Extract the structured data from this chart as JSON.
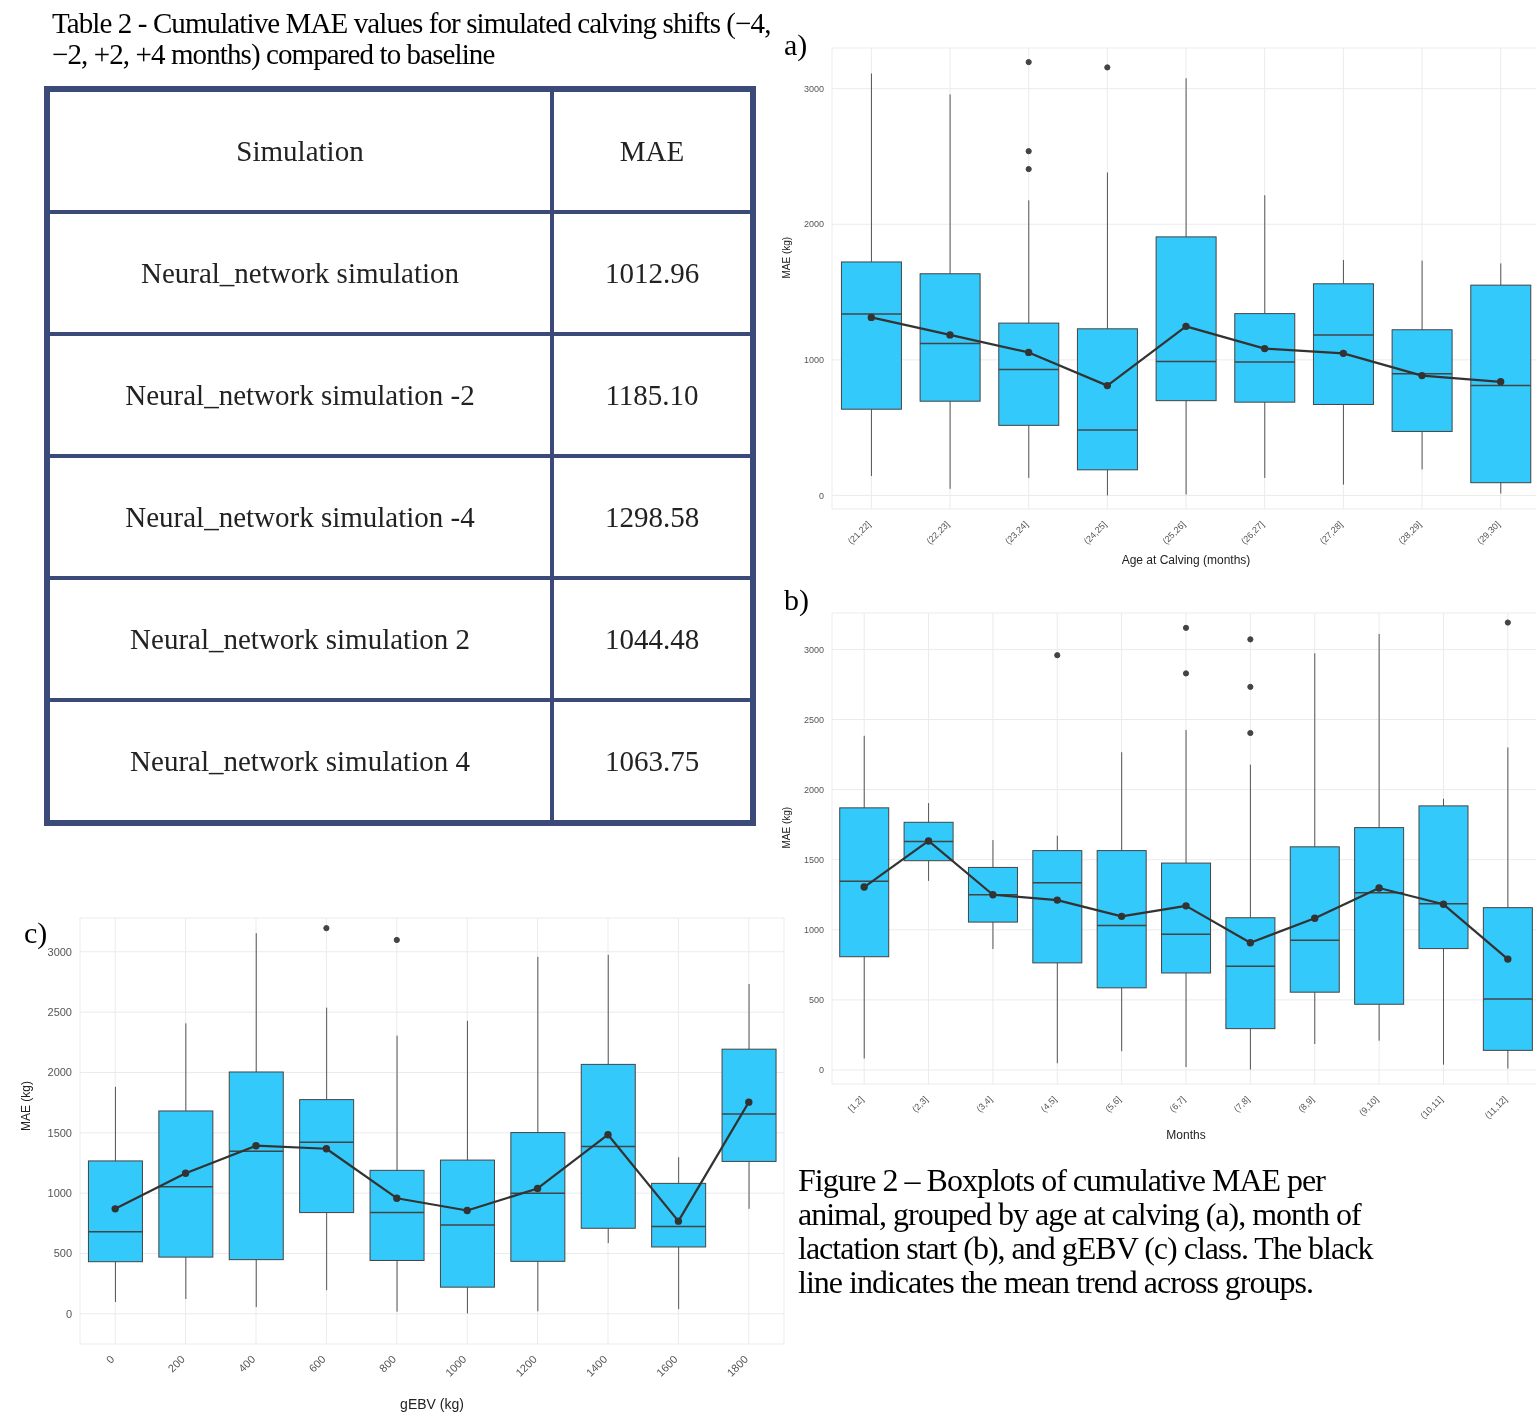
{
  "chart_data": [
    {
      "type": "other",
      "title": "Table 2 - Cumulative MAE values for simulated calving shifts (−4, −2, +2, +4 months) compared to baseline",
      "xlabel": "Simulation",
      "ylabel": "MAE",
      "categories": [
        "Neural_network simulation",
        "Neural_network simulation -2",
        "Neural_network simulation -4",
        "Neural_network simulation 2",
        "Neural_network simulation 4"
      ],
      "value_labels": [
        "1012.96",
        "1185.10",
        "1298.58",
        "1044.48",
        "1063.75"
      ]
    },
    {
      "type": "box",
      "title": "a)",
      "xlabel": "Age at Calving (months)",
      "ylabel": "MAE (kg)",
      "categories": [
        "(21,22]",
        "(22,23]",
        "(23,24]",
        "(24,25]",
        "(25,26]",
        "(26,27]",
        "(27,28]",
        "(28,29]",
        "(29,30]"
      ],
      "ylim": [
        -100,
        3300
      ],
      "yticks": [
        0,
        1000,
        2000,
        3000
      ],
      "grid": true,
      "marker": "circle",
      "series": [
        {
          "type": "box",
          "color": "#33c9fa",
          "boxes": [
            {
              "low": 143,
              "q1": 636,
              "median": 1338,
              "q3": 1722,
              "high": 3112
            },
            {
              "low": 49,
              "q1": 695,
              "median": 1121,
              "q3": 1635,
              "high": 2958
            },
            {
              "low": 129,
              "q1": 517,
              "median": 929,
              "q3": 1271,
              "high": 2176,
              "outliers": [
                3196,
                2539,
                2407
              ]
            },
            {
              "low": 0,
              "q1": 189,
              "median": 482,
              "q3": 1229,
              "high": 2382,
              "outliers": [
                3157
              ]
            },
            {
              "low": 7,
              "q1": 699,
              "median": 988,
              "q3": 1907,
              "high": 3077
            },
            {
              "low": 129,
              "q1": 688,
              "median": 985,
              "q3": 1341,
              "high": 2214
            },
            {
              "low": 80,
              "q1": 671,
              "median": 1184,
              "q3": 1561,
              "high": 1736
            },
            {
              "low": 192,
              "q1": 472,
              "median": 898,
              "q3": 1222,
              "high": 1732
            },
            {
              "low": 14,
              "q1": 94,
              "median": 810,
              "q3": 1551,
              "high": 1711
            }
          ]
        },
        {
          "type": "line",
          "color": "#333333",
          "values": [
            1313,
            1184,
            1055,
            810,
            1247,
            1083,
            1048,
            884,
            838
          ]
        }
      ]
    },
    {
      "type": "box",
      "title": "b)",
      "xlabel": "Months",
      "ylabel": "MAE (kg)",
      "categories": [
        "[1,2]",
        "(2,3]",
        "(3,4]",
        "(4,5]",
        "(5,6]",
        "(6,7]",
        "(7,8]",
        "(8,9]",
        "(9,10]",
        "(10,11]",
        "(11,12]"
      ],
      "ylim": [
        -100,
        3260
      ],
      "yticks": [
        0,
        500,
        1000,
        1500,
        2000,
        2500,
        3000
      ],
      "grid": true,
      "marker": "circle",
      "series": [
        {
          "type": "box",
          "color": "#33c9fa",
          "boxes": [
            {
              "low": 82,
              "q1": 808,
              "median": 1346,
              "q3": 1870,
              "high": 2384
            },
            {
              "low": 1349,
              "q1": 1493,
              "median": 1630,
              "q3": 1767,
              "high": 1904
            },
            {
              "low": 863,
              "q1": 1055,
              "median": 1250,
              "q3": 1445,
              "high": 1640
            },
            {
              "low": 48,
              "q1": 764,
              "median": 1336,
              "q3": 1565,
              "high": 1671,
              "outliers": [
                2959
              ]
            },
            {
              "low": 134,
              "q1": 586,
              "median": 1031,
              "q3": 1565,
              "high": 2267
            },
            {
              "low": 21,
              "q1": 692,
              "median": 969,
              "q3": 1476,
              "high": 2425,
              "outliers": [
                3154,
                2829
              ]
            },
            {
              "low": 3,
              "q1": 295,
              "median": 740,
              "q3": 1086,
              "high": 2178,
              "outliers": [
                3072,
                2733,
                2404
              ]
            },
            {
              "low": 185,
              "q1": 555,
              "median": 925,
              "q3": 1592,
              "high": 2973
            },
            {
              "low": 209,
              "q1": 469,
              "median": 1264,
              "q3": 1729,
              "high": 3110
            },
            {
              "low": 38,
              "q1": 866,
              "median": 1185,
              "q3": 1884,
              "high": 1935
            },
            {
              "low": 10,
              "q1": 140,
              "median": 507,
              "q3": 1158,
              "high": 2301,
              "outliers": [
                3192
              ]
            }
          ]
        },
        {
          "type": "line",
          "color": "#333333",
          "values": [
            1305,
            1634,
            1250,
            1212,
            1096,
            1171,
            908,
            1082,
            1298,
            1182,
            791
          ]
        }
      ]
    },
    {
      "type": "box",
      "title": "c)",
      "xlabel": "gEBV (kg)",
      "ylabel": "MAE (kg)",
      "categories": [
        "0",
        "200",
        "400",
        "600",
        "800",
        "1000",
        "1200",
        "1400",
        "1600",
        "1800"
      ],
      "ylim": [
        -250,
        3280
      ],
      "yticks": [
        0,
        500,
        1000,
        1500,
        2000,
        2500,
        3000
      ],
      "grid": true,
      "marker": "circle",
      "annotations": [
        "Figure 2 – Boxplots of cumulative MAE per animal, grouped by age at calving (a), month of lactation start (b), and gEBV (c) class. The black line indicates the mean trend across groups."
      ],
      "series": [
        {
          "type": "box",
          "color": "#33c9fa",
          "boxes": [
            {
              "low": 98,
              "q1": 432,
              "median": 681,
              "q3": 1267,
              "high": 1881
            },
            {
              "low": 123,
              "q1": 470,
              "median": 1053,
              "q3": 1681,
              "high": 2407
            },
            {
              "low": 56,
              "q1": 449,
              "median": 1347,
              "q3": 2004,
              "high": 3154
            },
            {
              "low": 196,
              "q1": 839,
              "median": 1421,
              "q3": 1775,
              "high": 2537,
              "outliers": [
                3196
              ]
            },
            {
              "low": 18,
              "q1": 442,
              "median": 839,
              "q3": 1189,
              "high": 2305,
              "outliers": [
                3098
              ]
            },
            {
              "low": 4,
              "q1": 221,
              "median": 737,
              "q3": 1274,
              "high": 2428
            },
            {
              "low": 21,
              "q1": 435,
              "median": 1000,
              "q3": 1502,
              "high": 2958
            },
            {
              "low": 586,
              "q1": 709,
              "median": 1386,
              "q3": 2067,
              "high": 2975
            },
            {
              "low": 39,
              "q1": 554,
              "median": 723,
              "q3": 1081,
              "high": 1298
            },
            {
              "low": 870,
              "q1": 1263,
              "median": 1656,
              "q3": 2193,
              "high": 2733
            }
          ]
        },
        {
          "type": "line",
          "color": "#333333",
          "values": [
            870,
            1165,
            1393,
            1368,
            958,
            856,
            1039,
            1484,
            768,
            1754
          ]
        }
      ]
    }
  ]
}
